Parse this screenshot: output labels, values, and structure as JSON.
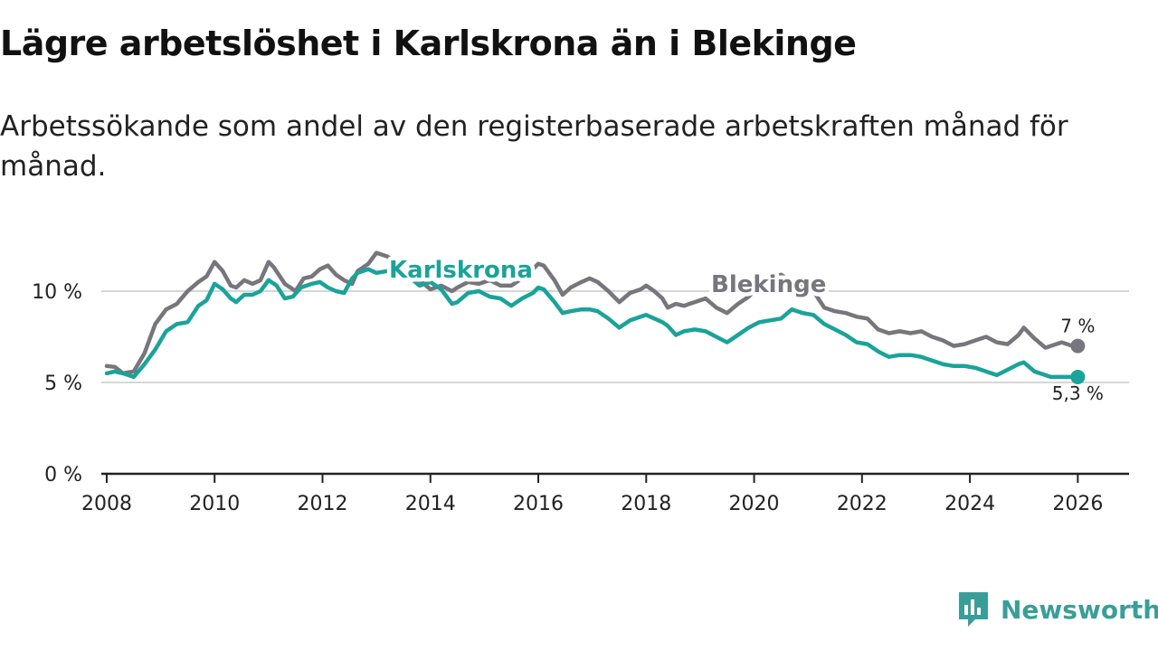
{
  "title": "Lägre arbetslöshet i Karlskrona än i Blekinge",
  "subtitle": "Arbetssökande som andel av den registerbaserade arbetskraften månad för månad.",
  "brand": "Newsworthy",
  "colors": {
    "karlskrona": "#1aa39a",
    "blekinge": "#76767c",
    "grid": "#d6d6d6",
    "axis": "#222222",
    "brand": "#3a9e98"
  },
  "chart_data": {
    "type": "line",
    "title": "Lägre arbetslöshet i Karlskrona än i Blekinge",
    "subtitle": "Arbetssökande som andel av den registerbaserade arbetskraften månad för månad.",
    "xlabel": "",
    "ylabel": "",
    "xlim": [
      2007.9,
      2026.95
    ],
    "ylim": [
      0,
      10
    ],
    "y_ticks": [
      0,
      5,
      10
    ],
    "y_tick_labels": [
      "0 %",
      "5 %",
      "10 %"
    ],
    "x_ticks": [
      2008,
      2010,
      2012,
      2014,
      2016,
      2018,
      2020,
      2022,
      2024,
      2026
    ],
    "x_tick_labels": [
      "2008",
      "2010",
      "2012",
      "2014",
      "2016",
      "2018",
      "2020",
      "2022",
      "2024",
      "2026"
    ],
    "grid": true,
    "series": [
      {
        "name": "Blekinge",
        "label": "Blekinge",
        "end_label": "7 %",
        "x": [
          2008.0,
          2008.15,
          2008.3,
          2008.5,
          2008.7,
          2008.9,
          2009.1,
          2009.3,
          2009.5,
          2009.7,
          2009.85,
          2010.0,
          2010.15,
          2010.3,
          2010.4,
          2010.55,
          2010.7,
          2010.85,
          2011.0,
          2011.1,
          2011.3,
          2011.5,
          2011.65,
          2011.8,
          2011.95,
          2012.1,
          2012.25,
          2012.4,
          2012.55,
          2012.65,
          2012.85,
          2013.0,
          2013.2,
          2013.4,
          2013.6,
          2013.8,
          2014.0,
          2014.2,
          2014.4,
          2014.5,
          2014.7,
          2014.9,
          2015.1,
          2015.3,
          2015.5,
          2015.7,
          2015.9,
          2016.0,
          2016.1,
          2016.3,
          2016.45,
          2016.6,
          2016.8,
          2016.95,
          2017.1,
          2017.3,
          2017.5,
          2017.7,
          2017.9,
          2018.0,
          2018.15,
          2018.3,
          2018.4,
          2018.55,
          2018.7,
          2018.9,
          2019.1,
          2019.3,
          2019.5,
          2019.7,
          2019.9,
          2020.1,
          2020.3,
          2020.5,
          2020.7,
          2020.9,
          2021.1,
          2021.3,
          2021.5,
          2021.7,
          2021.9,
          2022.1,
          2022.3,
          2022.5,
          2022.7,
          2022.9,
          2023.1,
          2023.3,
          2023.5,
          2023.7,
          2023.9,
          2024.1,
          2024.3,
          2024.5,
          2024.7,
          2024.9,
          2025.0,
          2025.2,
          2025.4,
          2025.5,
          2025.7,
          2025.9,
          2026.0
        ],
        "values": [
          5.9,
          5.85,
          5.5,
          5.6,
          6.6,
          8.2,
          9.0,
          9.3,
          10.0,
          10.5,
          10.8,
          11.6,
          11.1,
          10.3,
          10.2,
          10.6,
          10.4,
          10.6,
          11.6,
          11.3,
          10.4,
          10.0,
          10.7,
          10.8,
          11.2,
          11.4,
          10.9,
          10.6,
          10.4,
          11.1,
          11.5,
          12.1,
          11.9,
          11.5,
          11.0,
          10.6,
          10.1,
          10.3,
          10.0,
          10.2,
          10.5,
          10.4,
          10.6,
          10.3,
          10.3,
          10.7,
          11.2,
          11.5,
          11.4,
          10.6,
          9.8,
          10.2,
          10.5,
          10.7,
          10.5,
          10.0,
          9.4,
          9.9,
          10.1,
          10.3,
          10.0,
          9.6,
          9.1,
          9.3,
          9.2,
          9.4,
          9.6,
          9.1,
          8.8,
          9.3,
          9.7,
          10.3,
          10.6,
          10.9,
          10.5,
          10.3,
          10.0,
          9.1,
          8.9,
          8.8,
          8.6,
          8.5,
          7.9,
          7.7,
          7.8,
          7.7,
          7.8,
          7.5,
          7.3,
          7.0,
          7.1,
          7.3,
          7.5,
          7.2,
          7.1,
          7.6,
          8.0,
          7.4,
          6.9,
          7.0,
          7.2,
          7.0,
          7.0
        ]
      },
      {
        "name": "Karlskrona",
        "label": "Karlskrona",
        "end_label": "5,3 %",
        "x": [
          2008.0,
          2008.15,
          2008.3,
          2008.5,
          2008.7,
          2008.9,
          2009.1,
          2009.3,
          2009.5,
          2009.7,
          2009.85,
          2010.0,
          2010.15,
          2010.3,
          2010.4,
          2010.55,
          2010.7,
          2010.85,
          2011.0,
          2011.15,
          2011.3,
          2011.45,
          2011.6,
          2011.8,
          2011.95,
          2012.1,
          2012.25,
          2012.4,
          2012.55,
          2012.65,
          2012.85,
          2013.0,
          2013.2,
          2013.4,
          2013.6,
          2013.8,
          2014.0,
          2014.2,
          2014.4,
          2014.5,
          2014.7,
          2014.9,
          2015.1,
          2015.3,
          2015.5,
          2015.7,
          2015.9,
          2016.0,
          2016.1,
          2016.3,
          2016.45,
          2016.6,
          2016.8,
          2016.95,
          2017.1,
          2017.3,
          2017.5,
          2017.7,
          2017.9,
          2018.0,
          2018.15,
          2018.3,
          2018.4,
          2018.55,
          2018.7,
          2018.9,
          2019.1,
          2019.3,
          2019.5,
          2019.7,
          2019.9,
          2020.1,
          2020.3,
          2020.5,
          2020.7,
          2020.9,
          2021.1,
          2021.3,
          2021.5,
          2021.7,
          2021.9,
          2022.1,
          2022.3,
          2022.5,
          2022.7,
          2022.9,
          2023.1,
          2023.3,
          2023.5,
          2023.7,
          2023.9,
          2024.1,
          2024.3,
          2024.5,
          2024.7,
          2024.9,
          2025.0,
          2025.2,
          2025.4,
          2025.5,
          2025.7,
          2025.9,
          2026.0
        ],
        "values": [
          5.5,
          5.6,
          5.5,
          5.3,
          6.0,
          6.8,
          7.8,
          8.2,
          8.3,
          9.2,
          9.5,
          10.4,
          10.1,
          9.6,
          9.4,
          9.8,
          9.8,
          10.0,
          10.6,
          10.3,
          9.6,
          9.7,
          10.2,
          10.4,
          10.5,
          10.2,
          10.0,
          9.9,
          10.7,
          11.0,
          11.2,
          11.0,
          11.1,
          10.9,
          10.8,
          10.3,
          10.5,
          10.1,
          9.3,
          9.4,
          9.9,
          10.0,
          9.7,
          9.6,
          9.2,
          9.6,
          9.9,
          10.2,
          10.1,
          9.4,
          8.8,
          8.9,
          9.0,
          9.0,
          8.9,
          8.5,
          8.0,
          8.4,
          8.6,
          8.7,
          8.5,
          8.3,
          8.1,
          7.6,
          7.8,
          7.9,
          7.8,
          7.5,
          7.2,
          7.6,
          8.0,
          8.3,
          8.4,
          8.5,
          9.0,
          8.8,
          8.7,
          8.2,
          7.9,
          7.6,
          7.2,
          7.1,
          6.7,
          6.4,
          6.5,
          6.5,
          6.4,
          6.2,
          6.0,
          5.9,
          5.9,
          5.8,
          5.6,
          5.4,
          5.7,
          6.0,
          6.1,
          5.6,
          5.4,
          5.3,
          5.3,
          5.3,
          5.3
        ]
      }
    ]
  }
}
